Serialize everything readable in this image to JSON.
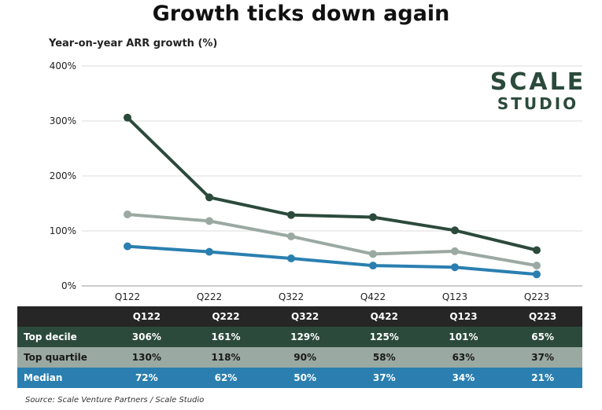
{
  "chart_data": {
    "type": "line",
    "title": "Growth ticks down again",
    "ylabel": "Year-on-year ARR growth (%)",
    "xlabel": "",
    "categories": [
      "Q122",
      "Q222",
      "Q322",
      "Q422",
      "Q123",
      "Q223"
    ],
    "ylim": [
      0,
      400
    ],
    "yticks": [
      "0%",
      "100%",
      "200%",
      "300%",
      "400%"
    ],
    "grid": true,
    "series": [
      {
        "name": "Top decile",
        "values": [
          306,
          161,
          129,
          125,
          101,
          65
        ],
        "labels": [
          "306%",
          "161%",
          "129%",
          "125%",
          "101%",
          "65%"
        ],
        "color": "#2c4a3c"
      },
      {
        "name": "Top quartile",
        "values": [
          130,
          118,
          90,
          58,
          63,
          37
        ],
        "labels": [
          "130%",
          "118%",
          "90%",
          "58%",
          "63%",
          "37%"
        ],
        "color": "#9aa9a2"
      },
      {
        "name": "Median",
        "values": [
          72,
          62,
          50,
          37,
          34,
          21
        ],
        "labels": [
          "72%",
          "62%",
          "50%",
          "37%",
          "34%",
          "21%"
        ],
        "color": "#2a7fb0"
      }
    ]
  },
  "logo": {
    "line1": "SCALE",
    "line2": "STUDIO"
  },
  "source": "Source: Scale Venture Partners / Scale Studio"
}
